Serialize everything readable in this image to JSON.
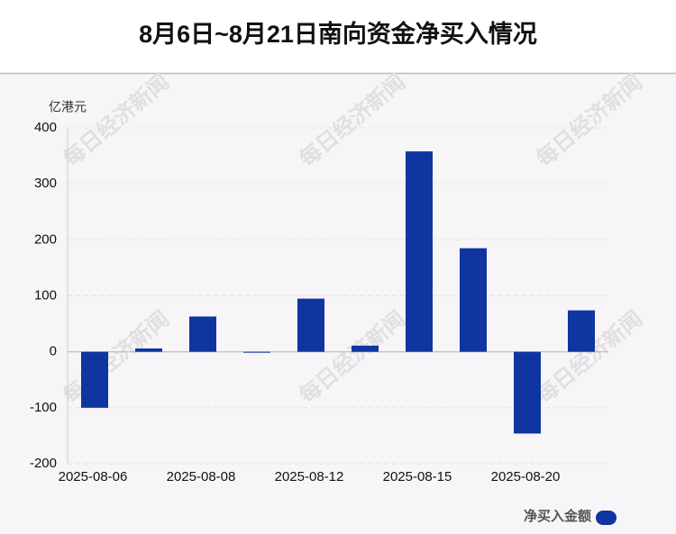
{
  "chart_data": {
    "type": "bar",
    "title": "8月6日~8月21日南向资金净买入情况",
    "y_axis_label": "亿港元",
    "watermark": "每日经济新闻",
    "categories": [
      "2025-08-06",
      null,
      "2025-08-08",
      null,
      "2025-08-12",
      null,
      "2025-08-15",
      null,
      "2025-08-20",
      null
    ],
    "series": [
      {
        "name": "净买入金额",
        "color": "#0e35a0",
        "values": [
          -100,
          6,
          63,
          -1,
          95,
          11,
          358,
          185,
          -146,
          74
        ]
      }
    ],
    "ylim": [
      -200,
      400
    ],
    "yticks": [
      -200,
      -100,
      0,
      100,
      200,
      300,
      400
    ],
    "grid": true,
    "legend": "bottom-right"
  }
}
